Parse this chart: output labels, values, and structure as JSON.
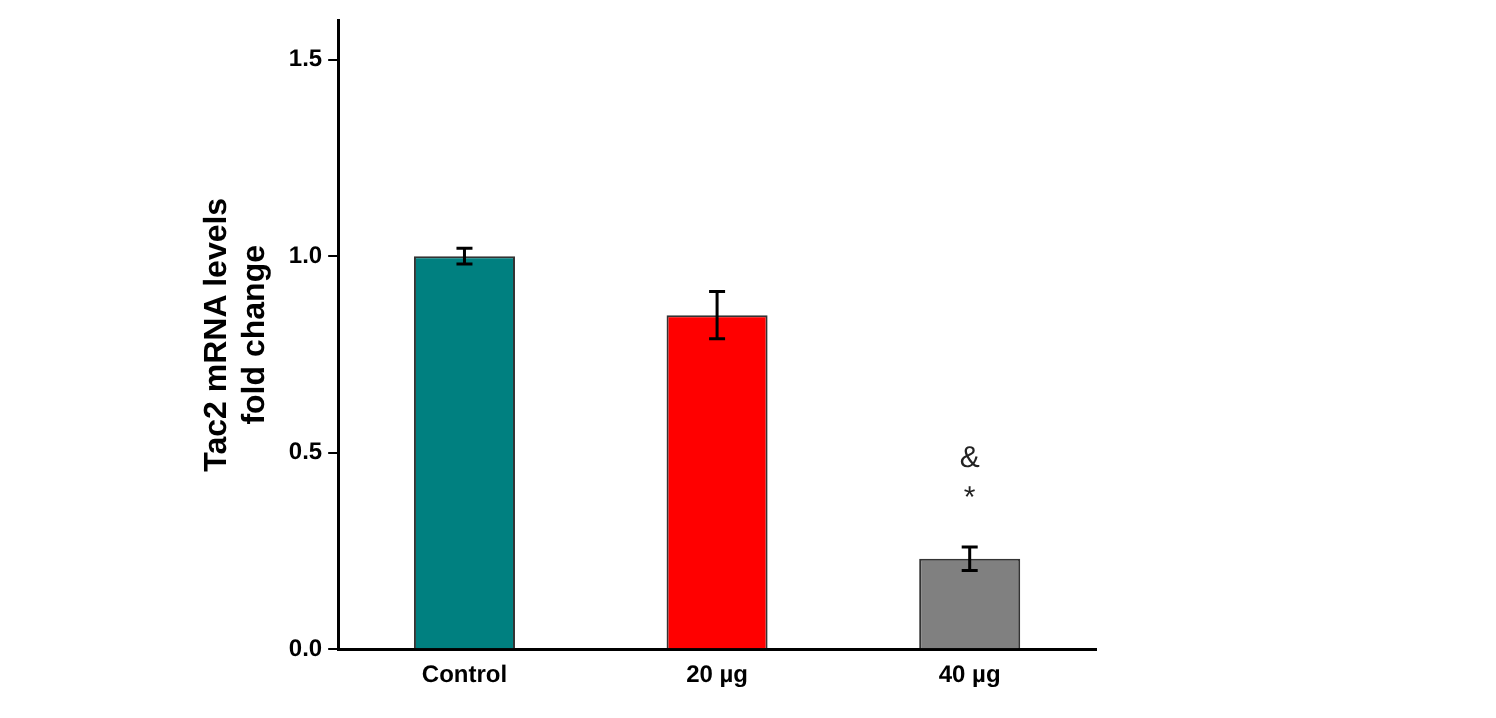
{
  "chart_data": {
    "type": "bar",
    "ylabel": "Tac2 mRNA levels\nfold change",
    "categories": [
      "Control",
      "20 µg",
      "40 µg"
    ],
    "values": [
      1.0,
      0.85,
      0.23
    ],
    "errors": [
      0.02,
      0.06,
      0.03
    ],
    "colors": [
      "#008080",
      "#ff0000",
      "#808080"
    ],
    "ylim": [
      0,
      1.6
    ],
    "yticks": [
      {
        "value": 0,
        "label": "0.0"
      },
      {
        "value": 0.5,
        "label": "0.5"
      },
      {
        "value": 1,
        "label": "1.0"
      },
      {
        "value": 1.5,
        "label": "1.5"
      }
    ],
    "grid": false,
    "legend": false,
    "annotations": [
      "*",
      "&"
    ]
  }
}
